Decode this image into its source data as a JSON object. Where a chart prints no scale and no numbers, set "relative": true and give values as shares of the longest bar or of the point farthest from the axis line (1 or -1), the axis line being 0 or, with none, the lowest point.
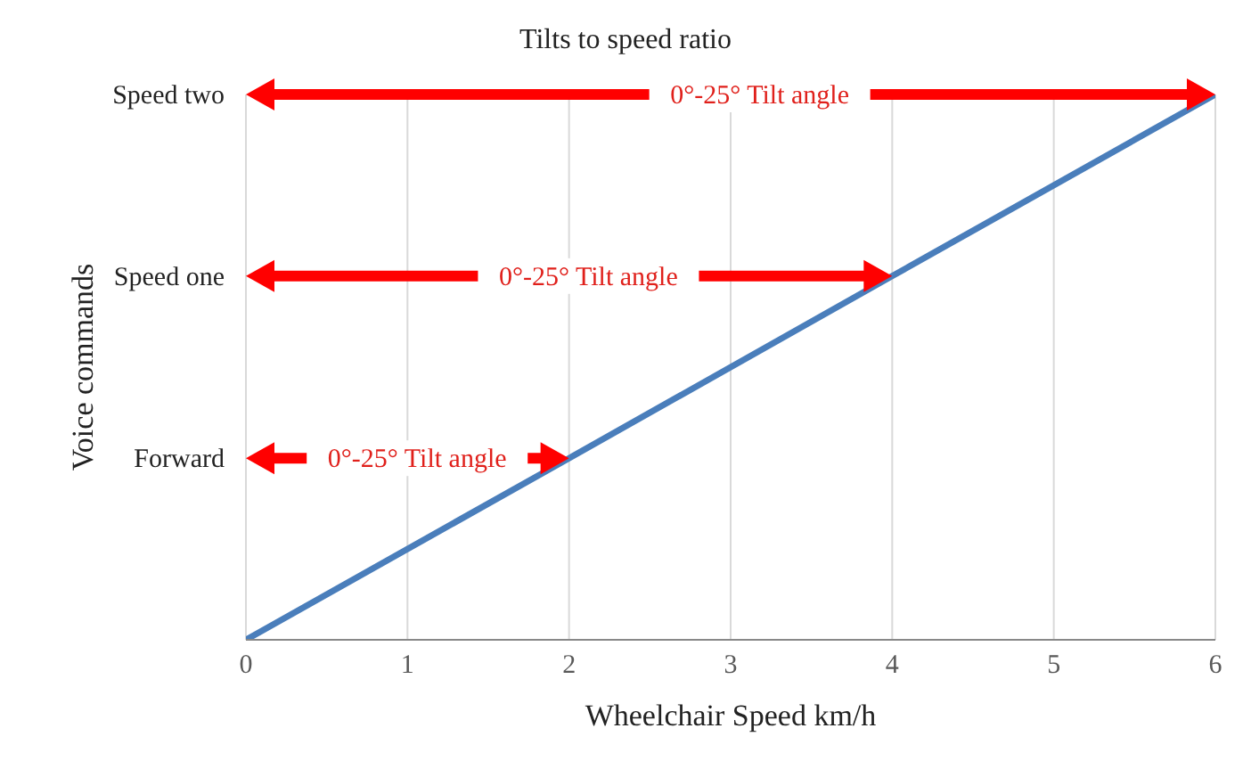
{
  "chart_data": {
    "type": "line",
    "title": "Tilts to speed ratio",
    "xlabel": "Wheelchair Speed km/h",
    "ylabel": "Voice commands",
    "x": [
      0,
      2,
      4,
      6
    ],
    "series": [
      {
        "color": "#4a7ebb",
        "values": [
          0,
          0.333,
          0.667,
          1
        ]
      }
    ],
    "relative": true,
    "xlim": [
      0,
      6
    ],
    "xticks": [
      0,
      1,
      2,
      3,
      4,
      5,
      6
    ],
    "grid": "x",
    "legend": false,
    "marker": "none",
    "line_style": "solid",
    "annotations": [
      "Forward",
      "0°-25° Tilt angle",
      "Speed one",
      "0°-25° Tilt angle",
      "Speed two",
      "0°-25° Tilt angle"
    ]
  }
}
